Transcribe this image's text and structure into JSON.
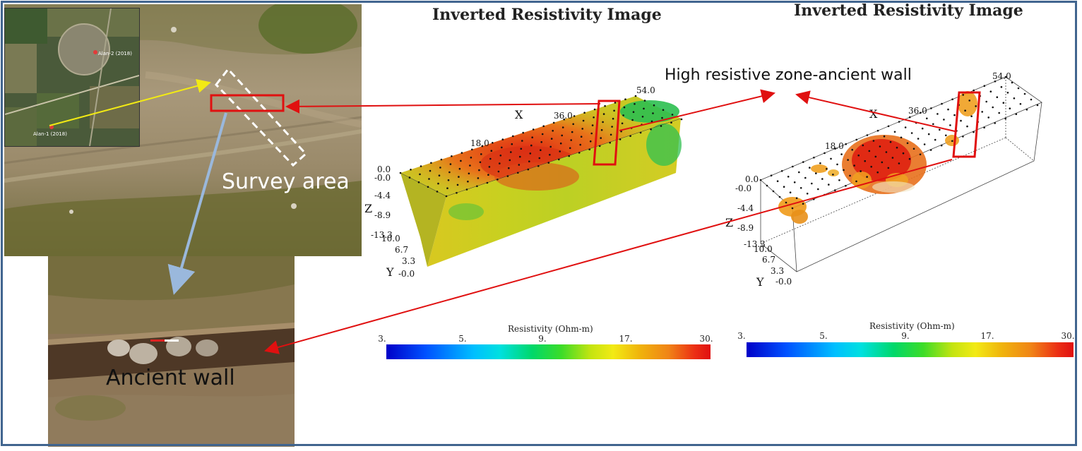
{
  "annotations": {
    "survey_area": "Survey area",
    "ancient_wall": "Ancient wall",
    "high_resistive_zone": "High resistive zone-ancient wall"
  },
  "inset_map": {
    "marker_1": "Alan-2 (2018)",
    "marker_2": "Alan-1 (2018)"
  },
  "panels": [
    {
      "title": "Inverted Resistivity Image",
      "axes": {
        "x_label": "X",
        "y_label": "Y",
        "z_label": "Z",
        "x_ticks": [
          "0.0",
          "18.0",
          "36.0",
          "54.0"
        ],
        "z_ticks": [
          "-0.0",
          "-4.4",
          "-8.9",
          "-13.3"
        ],
        "y_ticks": [
          "10.0",
          "6.7",
          "3.3",
          "-0.0"
        ]
      },
      "colorbar": {
        "label": "Resistivity (Ohm-m)",
        "ticks": [
          "3.",
          "5.",
          "9.",
          "17.",
          "30."
        ]
      }
    },
    {
      "title": "Inverted Resistivity Image",
      "axes": {
        "x_label": "X",
        "y_label": "Y",
        "z_label": "Z",
        "x_ticks": [
          "0.0",
          "18.0",
          "36.0",
          "54.0"
        ],
        "z_ticks": [
          "-0.0",
          "-4.4",
          "-8.9",
          "-13.3"
        ],
        "y_ticks": [
          "10.0",
          "6.7",
          "3.3",
          "-0.0"
        ]
      },
      "colorbar": {
        "label": "Resistivity (Ohm-m)",
        "ticks": [
          "3.",
          "5.",
          "9.",
          "17.",
          "30."
        ]
      }
    }
  ],
  "colors": {
    "frame": "#41658f",
    "highlight_box": "#e01010",
    "arrow_red": "#e01010",
    "arrow_yellow": "#f2ea14",
    "arrow_blue": "#9ab8dc"
  }
}
